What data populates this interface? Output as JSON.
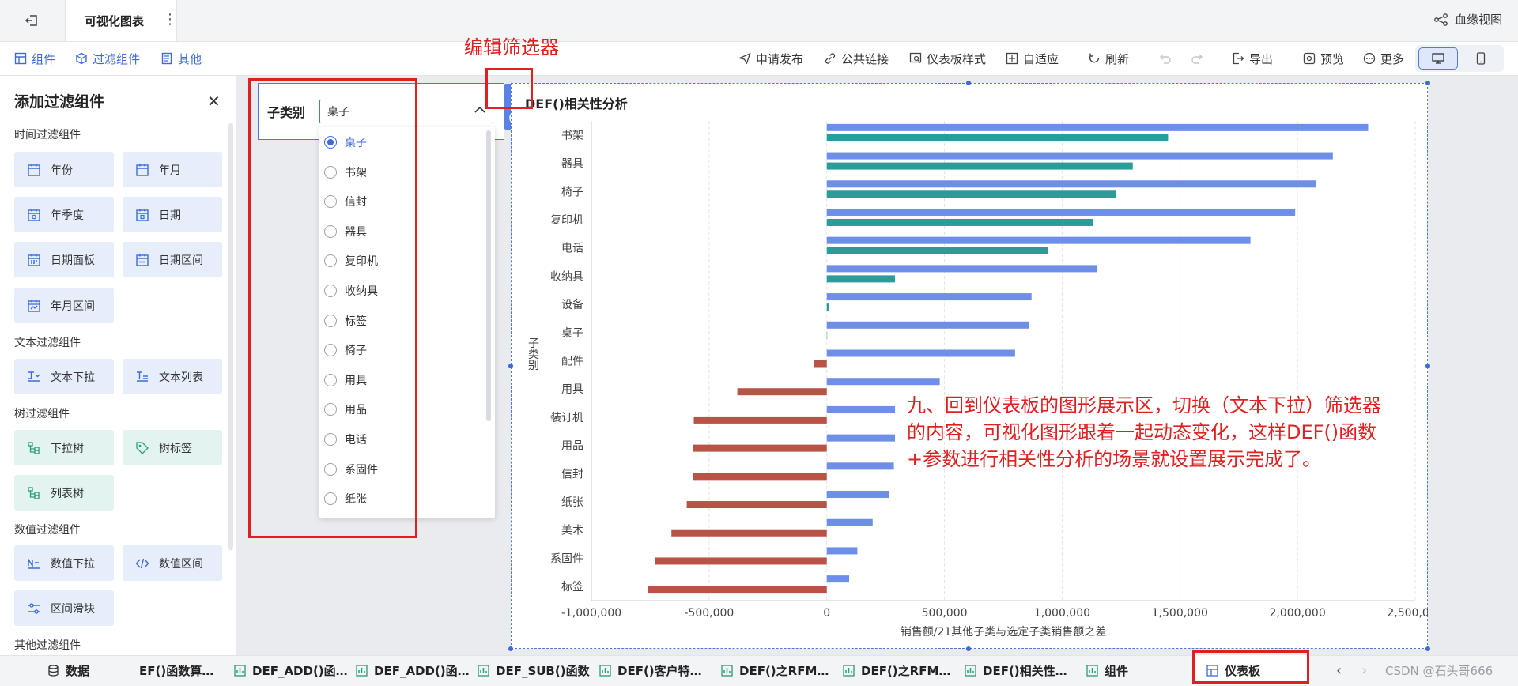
{
  "topbar": {
    "tab_title": "可视化图表",
    "more": "⋮",
    "lineage": "血缘视图"
  },
  "toolbar": {
    "left": [
      "组件",
      "过滤组件",
      "其他"
    ],
    "publish": "申请发布",
    "public_link": "公共链接",
    "dashboard_style": "仪表板样式",
    "adaptive": "自适应",
    "refresh": "刷新",
    "export": "导出",
    "preview": "预览",
    "more": "更多"
  },
  "left_panel": {
    "title": "添加过滤组件",
    "sections": [
      {
        "title": "时间过滤组件",
        "items": [
          "年份",
          "年月",
          "年季度",
          "日期",
          "日期面板",
          "日期区间",
          "年月区间"
        ]
      },
      {
        "title": "文本过滤组件",
        "items": [
          "文本下拉",
          "文本列表"
        ]
      },
      {
        "title": "树过滤组件",
        "items": [
          "下拉树",
          "树标签",
          "列表树"
        ]
      },
      {
        "title": "数值过滤组件",
        "items": [
          "数值下拉",
          "数值区间",
          "区间滑块"
        ]
      },
      {
        "title": "其他过滤组件",
        "items": []
      }
    ]
  },
  "filter": {
    "label": "子类别",
    "value": "桌子",
    "options": [
      "桌子",
      "书架",
      "信封",
      "器具",
      "复印机",
      "收纳具",
      "标签",
      "椅子",
      "用具",
      "用品",
      "电话",
      "系固件",
      "纸张"
    ],
    "selected": "桌子"
  },
  "annotations": {
    "edit_filter": "编辑筛选器",
    "description": "九、回到仪表板的图形展示区，切换（文本下拉）筛选器的内容，可视化图形跟着一起动态变化，这样DEF()函数+参数进行相关性分析的场景就设置展示完成了。"
  },
  "chart_data": {
    "type": "bar",
    "orientation": "horizontal",
    "title": "DEF()相关性分析",
    "xlabel": "销售额/21其他子类与选定子类销售额之差",
    "ylabel": "子类别",
    "xlim": [
      -1000000,
      2500000
    ],
    "xticks": [
      "-1,000,000",
      "-500,000",
      "0",
      "500,000",
      "1,000,000",
      "1,500,000",
      "2,000,000",
      "2,500,000"
    ],
    "categories": [
      "书架",
      "器具",
      "椅子",
      "复印机",
      "电话",
      "收纳具",
      "设备",
      "桌子",
      "配件",
      "用具",
      "装订机",
      "用品",
      "信封",
      "纸张",
      "美术",
      "系固件",
      "标签"
    ],
    "series": [
      {
        "color": "#6e8fe8",
        "values": [
          2300000,
          2150000,
          2080000,
          1990000,
          1800000,
          1150000,
          870000,
          860000,
          800000,
          480000,
          290000,
          290000,
          285000,
          265000,
          195000,
          130000,
          95000
        ]
      },
      {
        "color_positive": "#2a9c9a",
        "color_negative": "#b85445",
        "values": [
          1450000,
          1300000,
          1230000,
          1130000,
          940000,
          290000,
          10000,
          0,
          -55000,
          -380000,
          -565000,
          -570000,
          -570000,
          -595000,
          -660000,
          -730000,
          -760000
        ]
      }
    ],
    "grid": true
  },
  "bottom_tabs": [
    "数据",
    "EF()函数算…",
    "DEF_ADD()函…",
    "DEF_ADD()函…",
    "DEF_SUB()函数",
    "DEF()客户特…",
    "DEF()之RFM…",
    "DEF()之RFM…",
    "DEF()相关性…",
    "组件",
    "仪表板"
  ],
  "watermark": "CSDN @石头哥666"
}
